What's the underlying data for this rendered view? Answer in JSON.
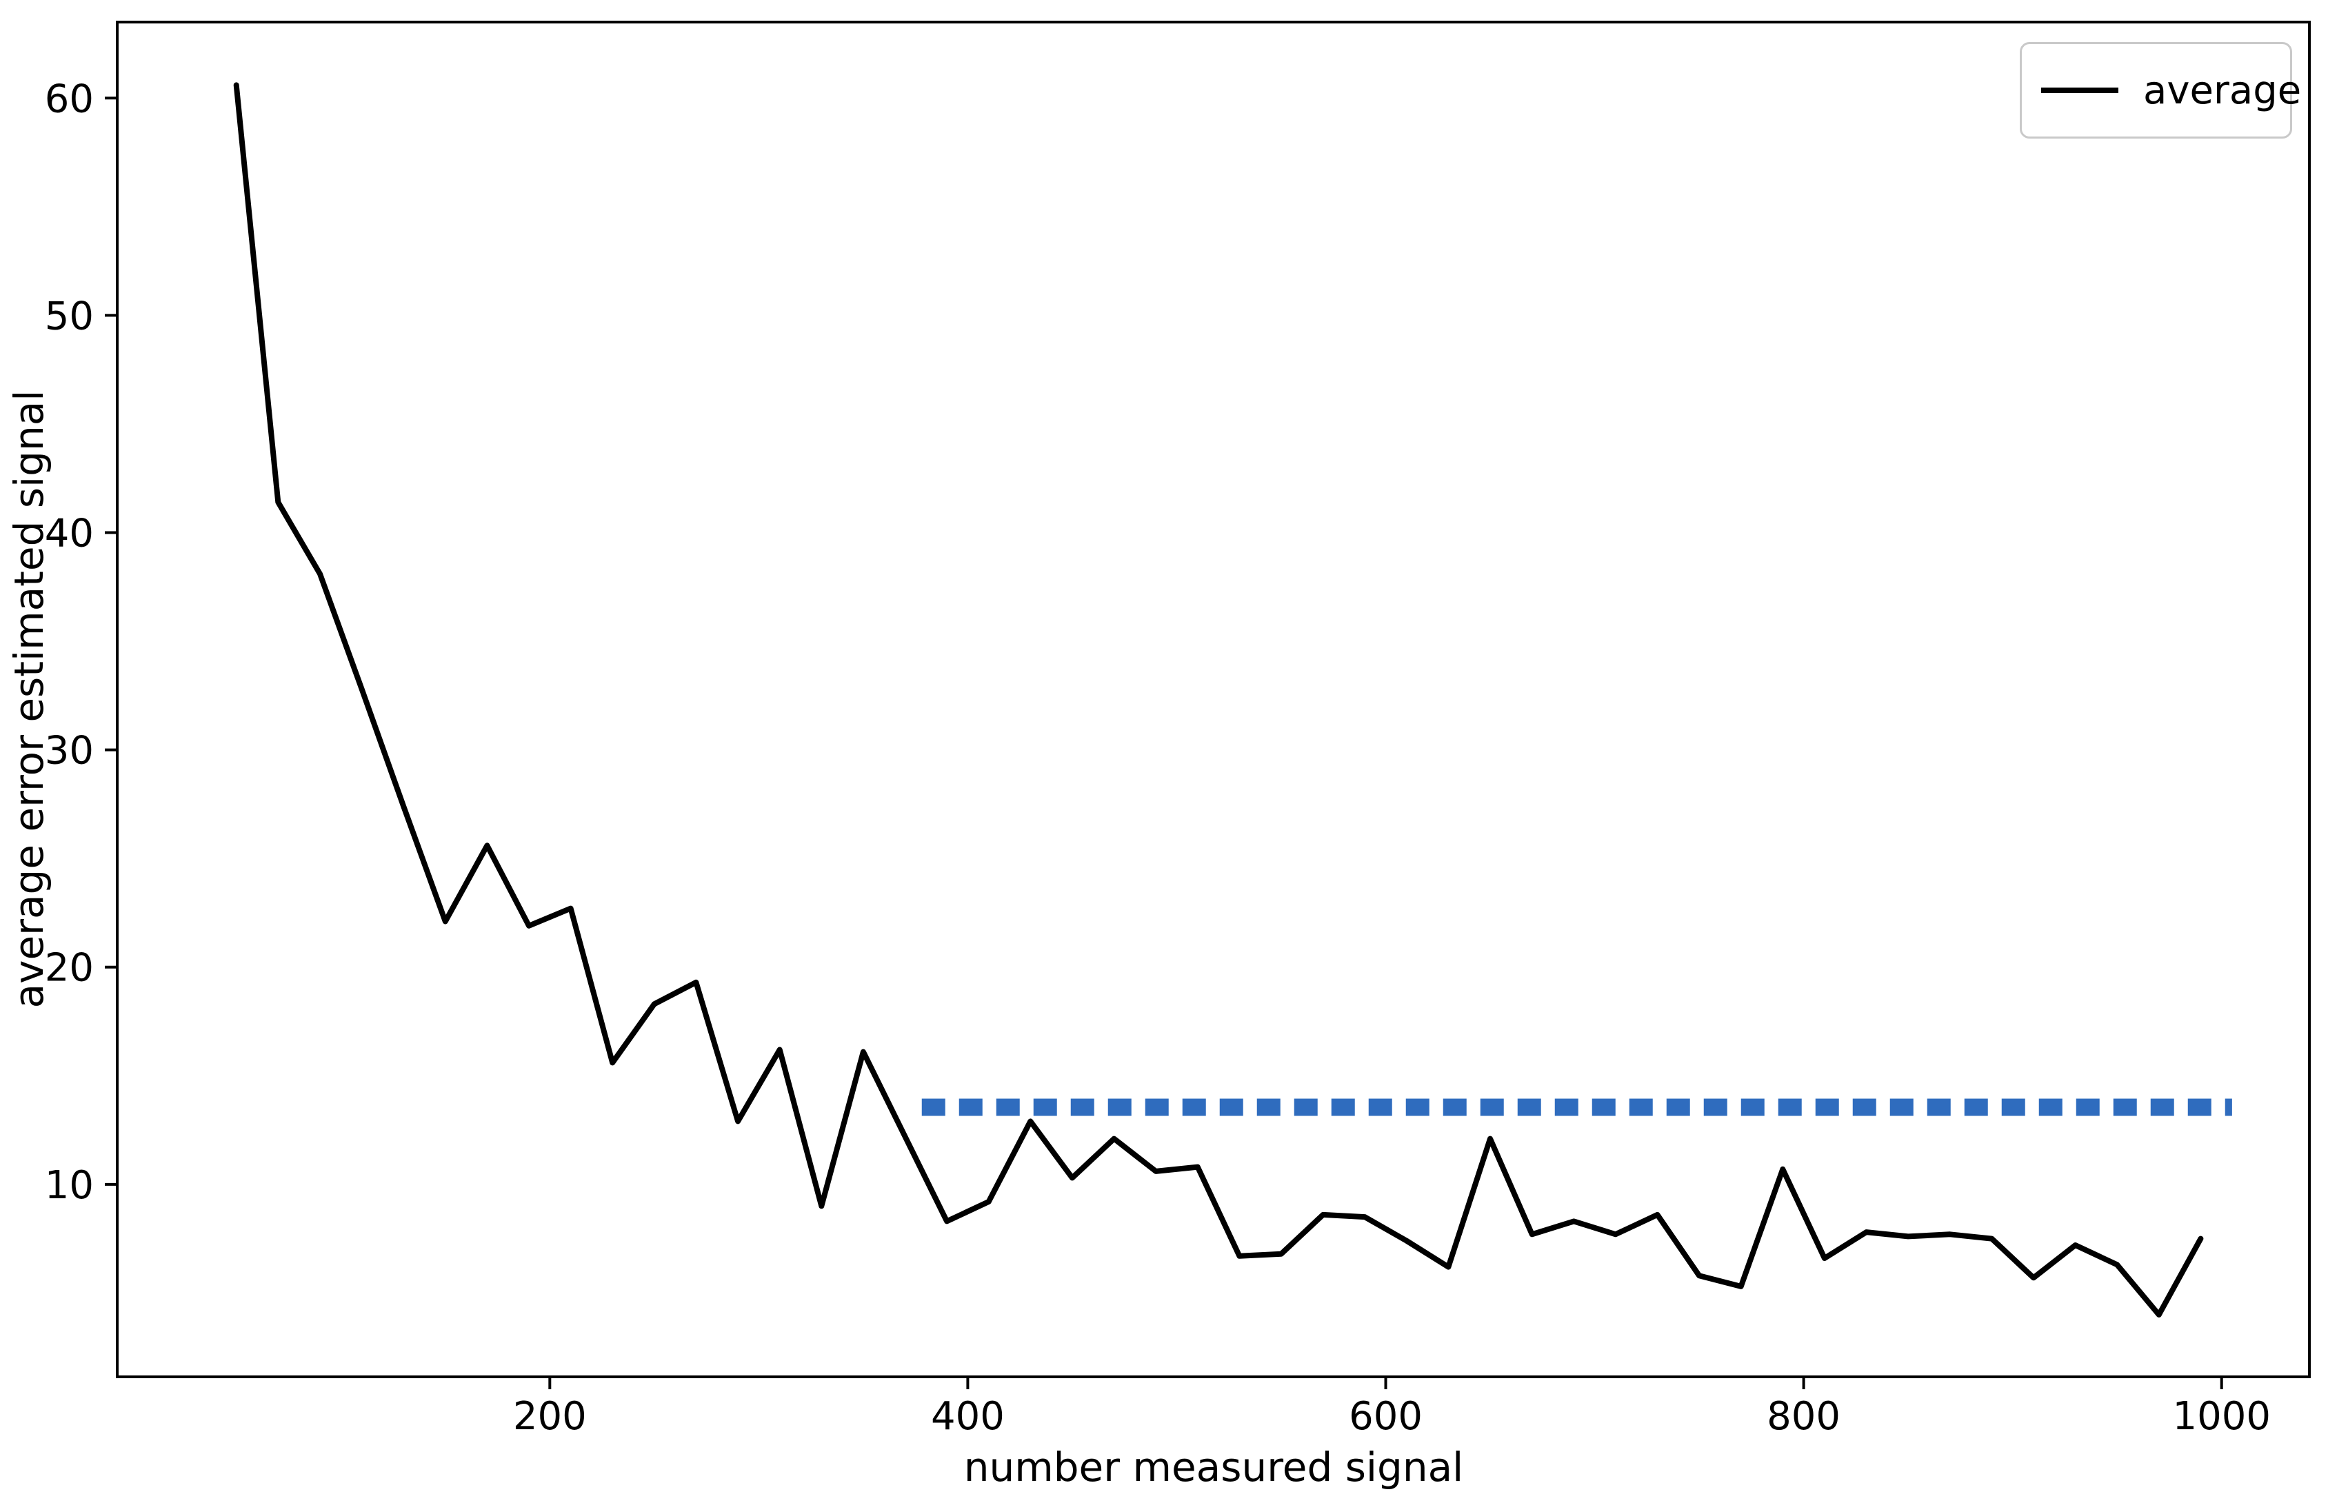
{
  "figure": {
    "background": "#ffffff",
    "text_color": "#000000",
    "spine_color": "#000000"
  },
  "chart_data": {
    "type": "line",
    "title": "",
    "xlabel": "number measured signal",
    "ylabel": "average error estimated signal",
    "xlim": [
      -7,
      1042
    ],
    "ylim": [
      1.14,
      63.5
    ],
    "xticks": [
      200,
      400,
      600,
      800,
      1000
    ],
    "yticks": [
      10,
      20,
      30,
      40,
      50,
      60
    ],
    "grid": false,
    "legend_position": "upper right",
    "series": [
      {
        "name": "average",
        "color": "#000000",
        "style": "solid",
        "x": [
          50,
          70,
          90,
          110,
          130,
          150,
          170,
          190,
          210,
          230,
          250,
          270,
          290,
          310,
          330,
          350,
          370,
          390,
          410,
          430,
          450,
          470,
          490,
          510,
          530,
          550,
          570,
          590,
          610,
          630,
          650,
          670,
          690,
          710,
          730,
          750,
          770,
          790,
          810,
          830,
          850,
          870,
          890,
          910,
          930,
          950,
          970,
          990
        ],
        "y": [
          60.6,
          41.4,
          38.1,
          32.8,
          27.4,
          22.1,
          25.6,
          21.9,
          22.7,
          15.6,
          18.3,
          19.3,
          12.9,
          16.2,
          9.0,
          16.1,
          12.2,
          8.3,
          9.2,
          12.9,
          10.3,
          12.1,
          10.6,
          10.8,
          6.7,
          6.8,
          8.6,
          8.5,
          7.4,
          6.2,
          12.1,
          7.7,
          8.3,
          7.7,
          8.6,
          5.8,
          5.3,
          10.7,
          6.6,
          7.8,
          7.6,
          7.7,
          7.5,
          5.7,
          7.2,
          6.3,
          4.0,
          7.5
        ]
      }
    ],
    "reference_line": {
      "y": 13.55,
      "x_start": 378,
      "x_end": 1005,
      "color": "#2f6cbe",
      "style": "dotted"
    }
  }
}
